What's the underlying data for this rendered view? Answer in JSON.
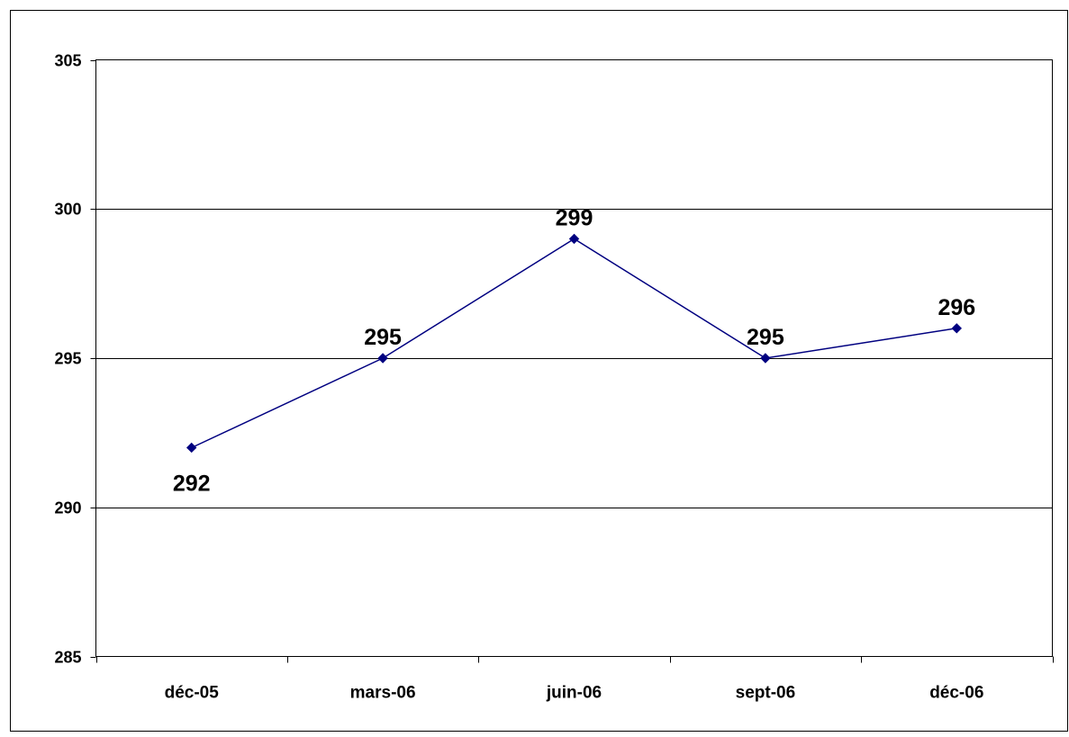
{
  "chart_data": {
    "type": "line",
    "categories": [
      "déc-05",
      "mars-06",
      "juin-06",
      "sept-06",
      "déc-06"
    ],
    "values": [
      292,
      295,
      299,
      295,
      296
    ],
    "data_labels": [
      "292",
      "295",
      "299",
      "295",
      "296"
    ],
    "ylim": [
      285,
      305
    ],
    "yticks": [
      285,
      290,
      295,
      300,
      305
    ],
    "ytick_labels": [
      "285",
      "290",
      "295",
      "300",
      "305"
    ],
    "title": "",
    "xlabel": "",
    "ylabel": "",
    "grid": true,
    "legend": "none",
    "colors": {
      "line": "#000080",
      "marker": "#000080",
      "grid": "#000000",
      "text": "#000000"
    }
  }
}
